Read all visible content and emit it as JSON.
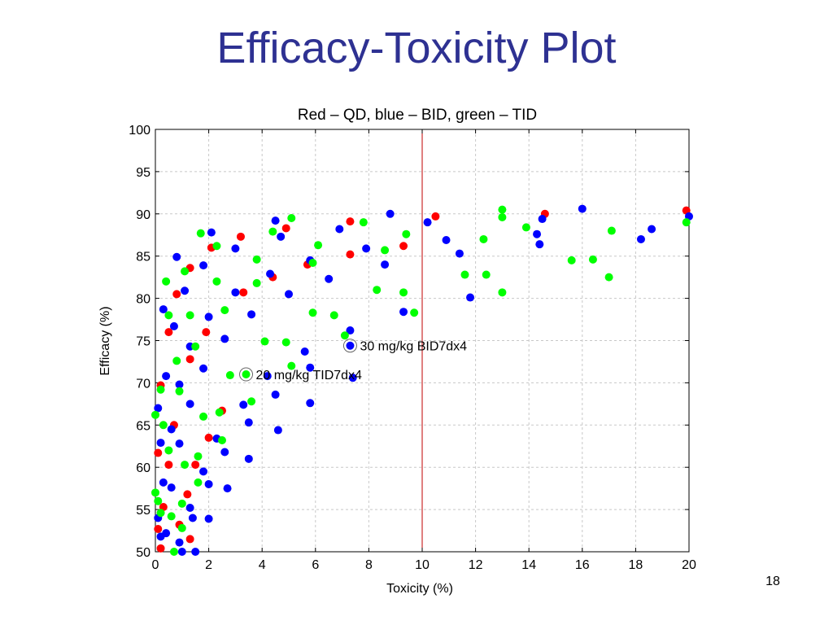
{
  "slide": {
    "title": "Efficacy-Toxicity Plot",
    "number": "18"
  },
  "colors": {
    "title": "#2e3192",
    "QD": "#ff0000",
    "BID": "#0000ff",
    "TID": "#00ff00",
    "refline": "#c00000",
    "grid": "#c8c8c8"
  },
  "chart_data": {
    "type": "scatter",
    "title": "Red – QD, blue – BID, green – TID",
    "xlabel": "Toxicity (%)",
    "ylabel": "Efficacy (%)",
    "xlim": [
      0,
      20
    ],
    "ylim": [
      50,
      100
    ],
    "xticks": [
      0,
      2,
      4,
      6,
      8,
      10,
      12,
      14,
      16,
      18,
      20
    ],
    "yticks": [
      50,
      55,
      60,
      65,
      70,
      75,
      80,
      85,
      90,
      95,
      100
    ],
    "grid": true,
    "reference_line_x": 10,
    "series": [
      {
        "color": "#ff0000",
        "points": [
          [
            0.2,
            69.7
          ],
          [
            0.3,
            55.3
          ],
          [
            0.1,
            52.7
          ],
          [
            0.1,
            61.7
          ],
          [
            0.5,
            60.3
          ],
          [
            0.7,
            65
          ],
          [
            0.5,
            76
          ],
          [
            0.8,
            80.5
          ],
          [
            1.2,
            56.8
          ],
          [
            1.3,
            51.5
          ],
          [
            1.3,
            72.8
          ],
          [
            1.3,
            83.6
          ],
          [
            1.5,
            60.3
          ],
          [
            1.9,
            76
          ],
          [
            2,
            63.5
          ],
          [
            2.1,
            86
          ],
          [
            2.5,
            66.7
          ],
          [
            3.2,
            87.3
          ],
          [
            3.3,
            80.7
          ],
          [
            4.4,
            82.5
          ],
          [
            4.9,
            88.3
          ],
          [
            5.7,
            84
          ],
          [
            7.3,
            85.2
          ],
          [
            7.3,
            89.1
          ],
          [
            9.3,
            86.2
          ],
          [
            10.5,
            89.7
          ],
          [
            14.6,
            90
          ],
          [
            19.9,
            90.4
          ],
          [
            0.2,
            50.4
          ],
          [
            0.9,
            53.2
          ]
        ]
      },
      {
        "color": "#0000ff",
        "points": [
          [
            0.1,
            67
          ],
          [
            0.2,
            62.9
          ],
          [
            0.1,
            54
          ],
          [
            0.2,
            51.8
          ],
          [
            0.3,
            58.2
          ],
          [
            0.4,
            52.2
          ],
          [
            0.4,
            70.8
          ],
          [
            0.3,
            78.7
          ],
          [
            0.6,
            64.5
          ],
          [
            0.6,
            57.6
          ],
          [
            0.7,
            76.7
          ],
          [
            0.8,
            84.9
          ],
          [
            0.9,
            62.8
          ],
          [
            0.9,
            69.8
          ],
          [
            0.9,
            51.1
          ],
          [
            1,
            50
          ],
          [
            1.1,
            80.9
          ],
          [
            1.3,
            55.2
          ],
          [
            1.3,
            67.5
          ],
          [
            1.3,
            74.3
          ],
          [
            1.4,
            54
          ],
          [
            1.5,
            50
          ],
          [
            1.8,
            59.5
          ],
          [
            1.8,
            83.9
          ],
          [
            1.8,
            71.7
          ],
          [
            2,
            58
          ],
          [
            2,
            53.9
          ],
          [
            2,
            77.8
          ],
          [
            2.1,
            87.8
          ],
          [
            2.3,
            63.4
          ],
          [
            2.6,
            75.2
          ],
          [
            2.6,
            61.8
          ],
          [
            2.7,
            57.5
          ],
          [
            3,
            80.7
          ],
          [
            3,
            85.9
          ],
          [
            3.3,
            67.4
          ],
          [
            3.5,
            65.3
          ],
          [
            3.5,
            61
          ],
          [
            3.6,
            78.1
          ],
          [
            4.2,
            70.8
          ],
          [
            4.3,
            82.9
          ],
          [
            4.5,
            68.6
          ],
          [
            4.5,
            89.2
          ],
          [
            4.6,
            64.4
          ],
          [
            4.7,
            87.3
          ],
          [
            5,
            80.5
          ],
          [
            5.6,
            73.7
          ],
          [
            5.8,
            67.6
          ],
          [
            5.8,
            71.8
          ],
          [
            5.8,
            84.5
          ],
          [
            6.5,
            82.3
          ],
          [
            6.9,
            88.2
          ],
          [
            7.3,
            76.2
          ],
          [
            7.3,
            74.4
          ],
          [
            7.4,
            70.6
          ],
          [
            7.9,
            85.9
          ],
          [
            8.6,
            84
          ],
          [
            8.8,
            90
          ],
          [
            9.3,
            78.4
          ],
          [
            10.2,
            89
          ],
          [
            10.9,
            86.9
          ],
          [
            11.4,
            85.3
          ],
          [
            11.8,
            80.1
          ],
          [
            14.3,
            87.6
          ],
          [
            14.4,
            86.4
          ],
          [
            14.5,
            89.4
          ],
          [
            16,
            90.6
          ],
          [
            18.2,
            87
          ],
          [
            18.6,
            88.2
          ],
          [
            20,
            89.7
          ]
        ]
      },
      {
        "color": "#00ff00",
        "points": [
          [
            0,
            66.2
          ],
          [
            0,
            57
          ],
          [
            0.1,
            56
          ],
          [
            0.2,
            54.6
          ],
          [
            0.3,
            65
          ],
          [
            0.2,
            69.2
          ],
          [
            0.4,
            82
          ],
          [
            0.5,
            78
          ],
          [
            0.5,
            62
          ],
          [
            0.6,
            54.2
          ],
          [
            0.7,
            50
          ],
          [
            0.8,
            72.6
          ],
          [
            0.9,
            69
          ],
          [
            1,
            55.7
          ],
          [
            1,
            52.8
          ],
          [
            1.1,
            60.3
          ],
          [
            1.1,
            83.2
          ],
          [
            1.3,
            78
          ],
          [
            1.5,
            74.3
          ],
          [
            1.6,
            61.3
          ],
          [
            1.6,
            58.2
          ],
          [
            1.7,
            87.7
          ],
          [
            1.8,
            66
          ],
          [
            2.3,
            82
          ],
          [
            2.3,
            86.2
          ],
          [
            2.4,
            66.5
          ],
          [
            2.5,
            63.2
          ],
          [
            2.6,
            78.6
          ],
          [
            2.8,
            70.9
          ],
          [
            3.4,
            71
          ],
          [
            3.6,
            67.8
          ],
          [
            3.8,
            84.6
          ],
          [
            3.8,
            81.8
          ],
          [
            4.1,
            74.9
          ],
          [
            4.4,
            87.9
          ],
          [
            4.9,
            74.8
          ],
          [
            5.1,
            72
          ],
          [
            5.1,
            89.5
          ],
          [
            5.9,
            78.3
          ],
          [
            5.9,
            84.2
          ],
          [
            6.1,
            86.3
          ],
          [
            6.7,
            78
          ],
          [
            7.1,
            75.6
          ],
          [
            7.8,
            89
          ],
          [
            8.3,
            81
          ],
          [
            8.6,
            85.7
          ],
          [
            9.3,
            80.7
          ],
          [
            9.4,
            87.6
          ],
          [
            9.7,
            78.3
          ],
          [
            11.6,
            82.8
          ],
          [
            12.3,
            87
          ],
          [
            12.4,
            82.8
          ],
          [
            13,
            80.7
          ],
          [
            13,
            90.5
          ],
          [
            13,
            89.6
          ],
          [
            13.9,
            88.4
          ],
          [
            15.6,
            84.5
          ],
          [
            16.4,
            84.6
          ],
          [
            17,
            82.5
          ],
          [
            17.1,
            88
          ],
          [
            19.9,
            89
          ]
        ]
      }
    ],
    "annotations": [
      {
        "text": "30 mg/kg BID7dx4",
        "x": 7.3,
        "y": 74.4
      },
      {
        "text": "20 mg/kg TID7dx4",
        "x": 3.4,
        "y": 71
      }
    ]
  }
}
